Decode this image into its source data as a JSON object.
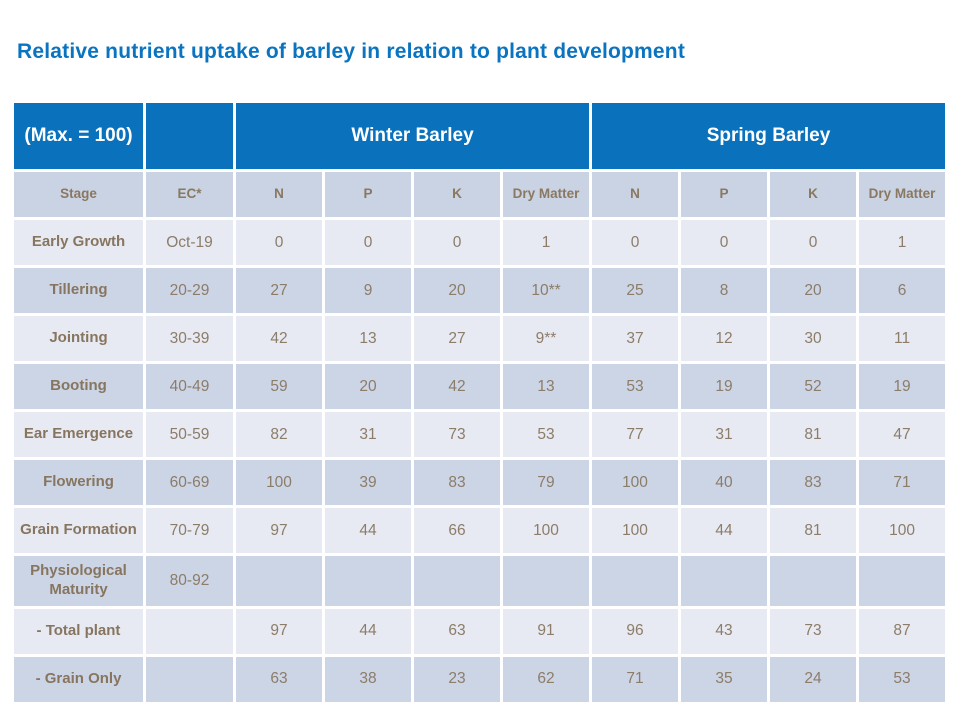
{
  "page": {
    "title": "Relative nutrient uptake of barley in relation to plant development"
  },
  "colors": {
    "title_blue": "#0a74c0",
    "header_band_blue": "#0a72bc",
    "column_header_bg": "#c9d3e3",
    "row_light_bg": "#e7eaf3",
    "row_dark_bg": "#cbd5e6",
    "text_brown": "#8c7c68",
    "cell_border_white": "#ffffff"
  },
  "table": {
    "corner_label": "(Max. = 100)",
    "groups": [
      {
        "label": "Winter Barley"
      },
      {
        "label": "Spring Barley"
      }
    ],
    "column_headers": [
      "Stage",
      "EC*",
      "N",
      "P",
      "K",
      "Dry Matter",
      "N",
      "P",
      "K",
      "Dry Matter"
    ],
    "rows": [
      {
        "stage": "Early Growth",
        "ec": "Oct-19",
        "values": [
          "0",
          "0",
          "0",
          "1",
          "0",
          "0",
          "0",
          "1"
        ]
      },
      {
        "stage": "Tillering",
        "ec": "20-29",
        "values": [
          "27",
          "9",
          "20",
          "10**",
          "25",
          "8",
          "20",
          "6"
        ]
      },
      {
        "stage": "Jointing",
        "ec": "30-39",
        "values": [
          "42",
          "13",
          "27",
          "9**",
          "37",
          "12",
          "30",
          "11"
        ]
      },
      {
        "stage": "Booting",
        "ec": "40-49",
        "values": [
          "59",
          "20",
          "42",
          "13",
          "53",
          "19",
          "52",
          "19"
        ]
      },
      {
        "stage": "Ear Emergence",
        "ec": "50-59",
        "values": [
          "82",
          "31",
          "73",
          "53",
          "77",
          "31",
          "81",
          "47"
        ]
      },
      {
        "stage": "Flowering",
        "ec": "60-69",
        "values": [
          "100",
          "39",
          "83",
          "79",
          "100",
          "40",
          "83",
          "71"
        ]
      },
      {
        "stage": "Grain Formation",
        "ec": "70-79",
        "values": [
          "97",
          "44",
          "66",
          "100",
          "100",
          "44",
          "81",
          "100"
        ]
      },
      {
        "stage": "Physiological Maturity",
        "ec": "80-92",
        "values": [
          "",
          "",
          "",
          "",
          "",
          "",
          "",
          ""
        ]
      },
      {
        "stage": "- Total plant",
        "ec": "",
        "values": [
          "97",
          "44",
          "63",
          "91",
          "96",
          "43",
          "73",
          "87"
        ]
      },
      {
        "stage": "- Grain Only",
        "ec": "",
        "values": [
          "63",
          "38",
          "23",
          "62",
          "71",
          "35",
          "24",
          "53"
        ]
      }
    ]
  }
}
